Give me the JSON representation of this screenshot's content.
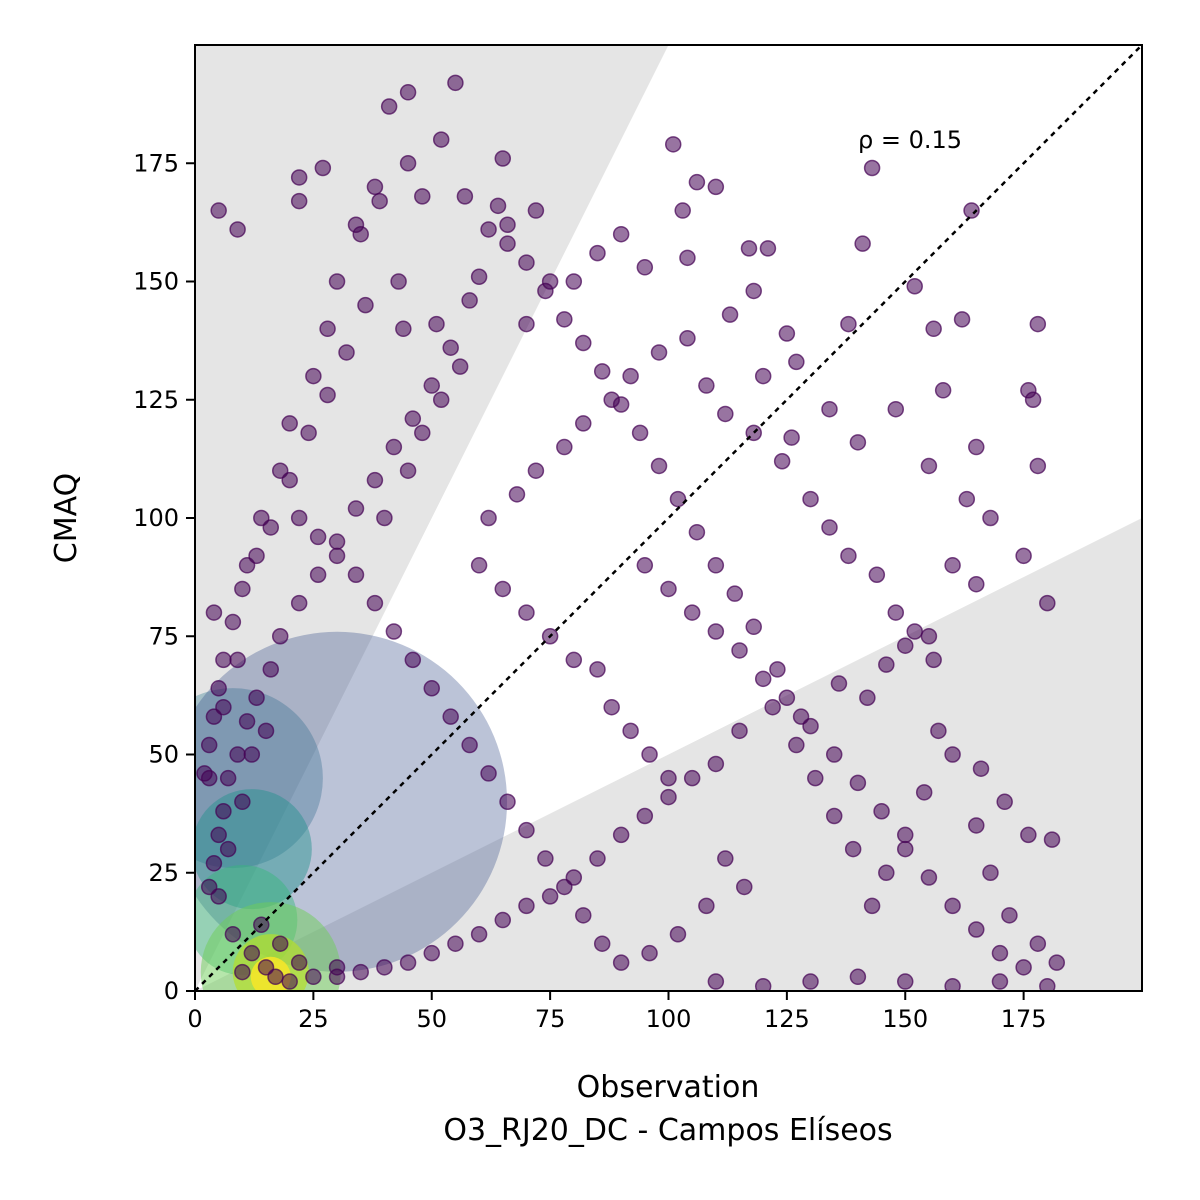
{
  "chart_data": {
    "type": "scatter",
    "title": "",
    "xlabel": "Observation",
    "xlabel_sub": "O3_RJ20_DC - Campos Elíseos",
    "ylabel": "CMAQ",
    "xlim": [
      0,
      200
    ],
    "ylim": [
      0,
      200
    ],
    "xticks": [
      0,
      25,
      50,
      75,
      100,
      125,
      150,
      175
    ],
    "yticks": [
      0,
      25,
      50,
      75,
      100,
      125,
      150,
      175
    ],
    "grid": false,
    "legend": "none",
    "annotation": "ρ = 0.15",
    "reference_line": {
      "type": "1:1",
      "style": "dotted",
      "color": "#000000"
    },
    "shaded_regions": {
      "color": "#e5e5e5",
      "description": "points outside factor-of-two of 1:1 line",
      "upper_slope": 2,
      "lower_slope": 0.5
    },
    "colormap": "viridis",
    "points": [
      [
        17,
        3
      ],
      [
        15,
        5
      ],
      [
        20,
        2
      ],
      [
        12,
        8
      ],
      [
        22,
        6
      ],
      [
        18,
        10
      ],
      [
        10,
        4
      ],
      [
        25,
        3
      ],
      [
        14,
        14
      ],
      [
        30,
        5
      ],
      [
        8,
        12
      ],
      [
        5,
        20
      ],
      [
        7,
        30
      ],
      [
        10,
        40
      ],
      [
        12,
        50
      ],
      [
        15,
        55
      ],
      [
        3,
        45
      ],
      [
        6,
        60
      ],
      [
        9,
        70
      ],
      [
        4,
        80
      ],
      [
        11,
        90
      ],
      [
        14,
        100
      ],
      [
        18,
        110
      ],
      [
        20,
        120
      ],
      [
        25,
        130
      ],
      [
        28,
        140
      ],
      [
        30,
        150
      ],
      [
        35,
        160
      ],
      [
        38,
        170
      ],
      [
        45,
        175
      ],
      [
        52,
        180
      ],
      [
        55,
        192
      ],
      [
        45,
        190
      ],
      [
        41,
        187
      ],
      [
        39,
        167
      ],
      [
        34,
        162
      ],
      [
        22,
        167
      ],
      [
        9,
        161
      ],
      [
        5,
        165
      ],
      [
        27,
        174
      ],
      [
        22,
        172
      ],
      [
        48,
        168
      ],
      [
        57,
        168
      ],
      [
        65,
        176
      ],
      [
        64,
        166
      ],
      [
        72,
        165
      ],
      [
        66,
        162
      ],
      [
        43,
        150
      ],
      [
        51,
        141
      ],
      [
        60,
        151
      ],
      [
        70,
        141
      ],
      [
        75,
        150
      ],
      [
        80,
        150
      ],
      [
        85,
        156
      ],
      [
        90,
        160
      ],
      [
        95,
        153
      ],
      [
        101,
        179
      ],
      [
        103,
        165
      ],
      [
        106,
        171
      ],
      [
        110,
        170
      ],
      [
        117,
        157
      ],
      [
        121,
        157
      ],
      [
        104,
        155
      ],
      [
        113,
        143
      ],
      [
        118,
        148
      ],
      [
        125,
        139
      ],
      [
        127,
        133
      ],
      [
        138,
        141
      ],
      [
        143,
        174
      ],
      [
        152,
        149
      ],
      [
        156,
        140
      ],
      [
        164,
        165
      ],
      [
        162,
        142
      ],
      [
        141,
        158
      ],
      [
        120,
        130
      ],
      [
        126,
        117
      ],
      [
        134,
        123
      ],
      [
        140,
        116
      ],
      [
        148,
        123
      ],
      [
        155,
        111
      ],
      [
        158,
        127
      ],
      [
        165,
        115
      ],
      [
        163,
        104
      ],
      [
        168,
        100
      ],
      [
        175,
        92
      ],
      [
        178,
        111
      ],
      [
        176,
        127
      ],
      [
        177,
        125
      ],
      [
        178,
        141
      ],
      [
        180,
        82
      ],
      [
        165,
        86
      ],
      [
        160,
        90
      ],
      [
        155,
        75
      ],
      [
        150,
        73
      ],
      [
        146,
        69
      ],
      [
        142,
        62
      ],
      [
        136,
        65
      ],
      [
        128,
        58
      ],
      [
        122,
        60
      ],
      [
        115,
        55
      ],
      [
        110,
        48
      ],
      [
        105,
        45
      ],
      [
        100,
        41
      ],
      [
        95,
        37
      ],
      [
        90,
        33
      ],
      [
        85,
        28
      ],
      [
        80,
        24
      ],
      [
        75,
        20
      ],
      [
        70,
        18
      ],
      [
        65,
        15
      ],
      [
        60,
        12
      ],
      [
        55,
        10
      ],
      [
        50,
        8
      ],
      [
        45,
        6
      ],
      [
        40,
        5
      ],
      [
        35,
        4
      ],
      [
        30,
        3
      ],
      [
        110,
        2
      ],
      [
        120,
        1
      ],
      [
        130,
        2
      ],
      [
        140,
        3
      ],
      [
        150,
        2
      ],
      [
        160,
        1
      ],
      [
        170,
        2
      ],
      [
        180,
        1
      ],
      [
        182,
        6
      ],
      [
        178,
        10
      ],
      [
        172,
        16
      ],
      [
        168,
        25
      ],
      [
        165,
        35
      ],
      [
        171,
        40
      ],
      [
        176,
        33
      ],
      [
        181,
        32
      ],
      [
        166,
        47
      ],
      [
        160,
        50
      ],
      [
        157,
        55
      ],
      [
        154,
        42
      ],
      [
        150,
        33
      ],
      [
        146,
        25
      ],
      [
        143,
        18
      ],
      [
        139,
        30
      ],
      [
        135,
        37
      ],
      [
        131,
        45
      ],
      [
        127,
        52
      ],
      [
        123,
        68
      ],
      [
        118,
        77
      ],
      [
        114,
        84
      ],
      [
        110,
        90
      ],
      [
        106,
        97
      ],
      [
        102,
        104
      ],
      [
        98,
        111
      ],
      [
        94,
        118
      ],
      [
        90,
        124
      ],
      [
        86,
        131
      ],
      [
        82,
        137
      ],
      [
        78,
        142
      ],
      [
        74,
        148
      ],
      [
        70,
        154
      ],
      [
        66,
        158
      ],
      [
        62,
        161
      ],
      [
        58,
        146
      ],
      [
        54,
        136
      ],
      [
        50,
        128
      ],
      [
        46,
        121
      ],
      [
        42,
        115
      ],
      [
        38,
        108
      ],
      [
        34,
        102
      ],
      [
        30,
        95
      ],
      [
        26,
        88
      ],
      [
        22,
        82
      ],
      [
        18,
        75
      ],
      [
        16,
        68
      ],
      [
        13,
        62
      ],
      [
        11,
        57
      ],
      [
        9,
        50
      ],
      [
        7,
        45
      ],
      [
        6,
        38
      ],
      [
        5,
        33
      ],
      [
        4,
        27
      ],
      [
        3,
        22
      ],
      [
        60,
        90
      ],
      [
        65,
        85
      ],
      [
        70,
        80
      ],
      [
        75,
        75
      ],
      [
        80,
        70
      ],
      [
        85,
        68
      ],
      [
        88,
        60
      ],
      [
        92,
        55
      ],
      [
        96,
        50
      ],
      [
        100,
        45
      ],
      [
        62,
        100
      ],
      [
        68,
        105
      ],
      [
        72,
        110
      ],
      [
        78,
        115
      ],
      [
        82,
        120
      ],
      [
        88,
        125
      ],
      [
        92,
        130
      ],
      [
        98,
        135
      ],
      [
        104,
        138
      ],
      [
        108,
        128
      ],
      [
        112,
        122
      ],
      [
        118,
        118
      ],
      [
        124,
        112
      ],
      [
        130,
        104
      ],
      [
        134,
        98
      ],
      [
        138,
        92
      ],
      [
        144,
        88
      ],
      [
        148,
        80
      ],
      [
        152,
        76
      ],
      [
        156,
        70
      ],
      [
        40,
        100
      ],
      [
        45,
        110
      ],
      [
        48,
        118
      ],
      [
        52,
        125
      ],
      [
        56,
        132
      ],
      [
        44,
        140
      ],
      [
        36,
        145
      ],
      [
        32,
        135
      ],
      [
        28,
        126
      ],
      [
        24,
        118
      ],
      [
        20,
        108
      ],
      [
        16,
        98
      ],
      [
        13,
        92
      ],
      [
        10,
        85
      ],
      [
        8,
        78
      ],
      [
        6,
        70
      ],
      [
        5,
        64
      ],
      [
        4,
        58
      ],
      [
        3,
        52
      ],
      [
        2,
        46
      ],
      [
        95,
        90
      ],
      [
        100,
        85
      ],
      [
        105,
        80
      ],
      [
        110,
        76
      ],
      [
        115,
        72
      ],
      [
        120,
        66
      ],
      [
        125,
        62
      ],
      [
        130,
        56
      ],
      [
        135,
        50
      ],
      [
        140,
        44
      ],
      [
        145,
        38
      ],
      [
        150,
        30
      ],
      [
        155,
        24
      ],
      [
        160,
        18
      ],
      [
        165,
        13
      ],
      [
        170,
        8
      ],
      [
        175,
        5
      ],
      [
        112,
        28
      ],
      [
        116,
        22
      ],
      [
        108,
        18
      ],
      [
        102,
        12
      ],
      [
        96,
        8
      ],
      [
        90,
        6
      ],
      [
        86,
        10
      ],
      [
        82,
        16
      ],
      [
        78,
        22
      ],
      [
        74,
        28
      ],
      [
        70,
        34
      ],
      [
        66,
        40
      ],
      [
        62,
        46
      ],
      [
        58,
        52
      ],
      [
        54,
        58
      ],
      [
        50,
        64
      ],
      [
        46,
        70
      ],
      [
        42,
        76
      ],
      [
        38,
        82
      ],
      [
        34,
        88
      ],
      [
        30,
        92
      ],
      [
        26,
        96
      ],
      [
        22,
        100
      ]
    ]
  }
}
